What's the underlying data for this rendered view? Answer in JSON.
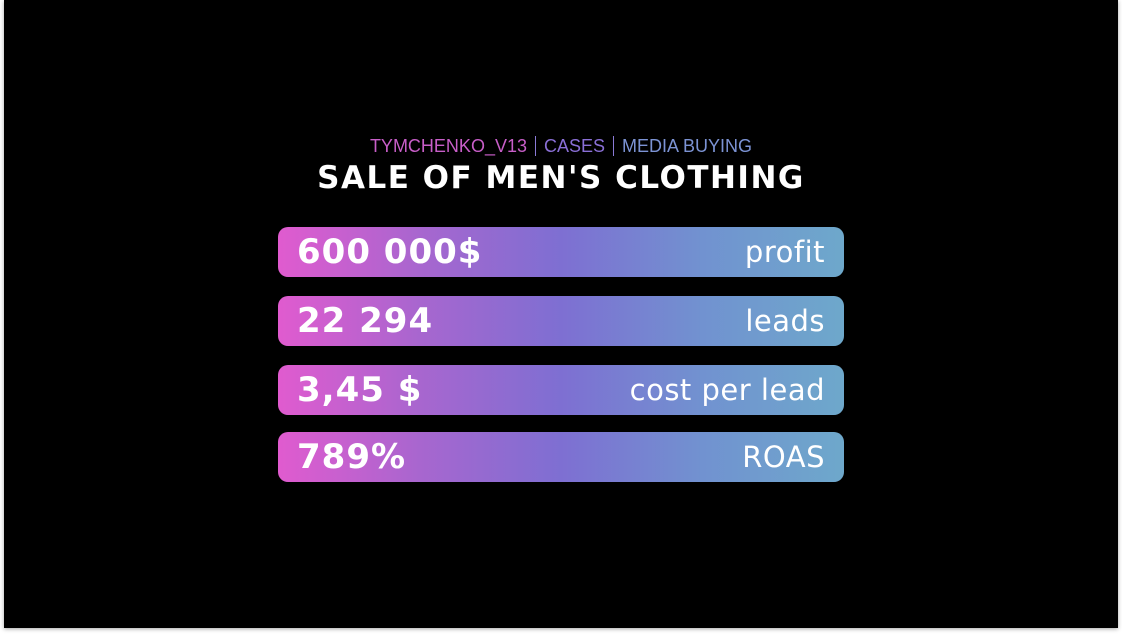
{
  "header": {
    "tagline": [
      "TYMCHENKO_V13",
      "CASES",
      "MEDIA BUYING"
    ],
    "title": "SALE OF MEN'S CLOTHING"
  },
  "metrics": [
    {
      "value": "600 000$",
      "label": "profit"
    },
    {
      "value": "22 294",
      "label": "leads"
    },
    {
      "value": "3,45 $",
      "label": "cost per lead"
    },
    {
      "value": "789%",
      "label": "ROAS"
    }
  ]
}
